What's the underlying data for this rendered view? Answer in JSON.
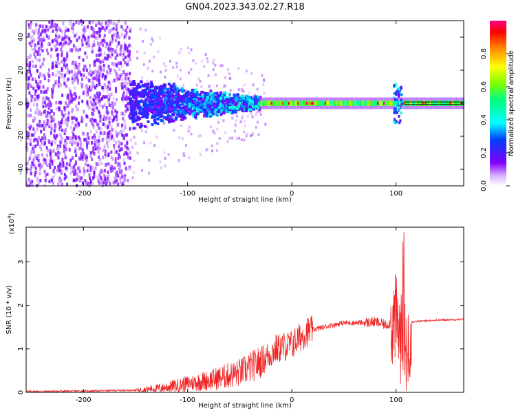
{
  "title": "GN04.2023.343.02.27.R18",
  "chart_data": [
    {
      "type": "heatmap",
      "xlabel": "Height of straight line (km)",
      "ylabel": "Frequency (Hz)",
      "xlim": [
        -255,
        165
      ],
      "ylim": [
        -50,
        50
      ],
      "xticks": [
        "-200",
        "-100",
        "0",
        "100"
      ],
      "yticks": [
        "-40",
        "-20",
        "0",
        "20",
        "40"
      ],
      "colorbar": {
        "label": "Normalized spectral amplitude",
        "range": [
          0,
          1
        ],
        "ticks": [
          "0.0",
          "0.2",
          "0.4",
          "0.6",
          "0.8"
        ]
      },
      "features": {
        "noise_region_x": [
          -255,
          -155
        ],
        "burst_region_x": [
          -155,
          -30
        ],
        "tone_x": [
          -30,
          165
        ],
        "tone_frequency_hz": 0,
        "disturbance_x": 100
      }
    },
    {
      "type": "line",
      "xlabel": "Height of straight line (km)",
      "ylabel": "SNR (10 * v/v)",
      "yscale_note": "(x10^4)",
      "xlim": [
        -255,
        165
      ],
      "ylim": [
        0,
        3.8
      ],
      "xticks": [
        "-200",
        "-100",
        "0",
        "100"
      ],
      "yticks": [
        "0",
        "1",
        "2",
        "3"
      ],
      "series": [
        {
          "color": "#ee2222",
          "x": [
            -255,
            -200,
            -150,
            -125,
            -100,
            -75,
            -50,
            -30,
            -15,
            0,
            15,
            30,
            50,
            70,
            80,
            90,
            100,
            105,
            110,
            115,
            130,
            150,
            165
          ],
          "y": [
            0.02,
            0.03,
            0.05,
            0.1,
            0.2,
            0.3,
            0.45,
            0.7,
            1.0,
            1.1,
            1.4,
            1.5,
            1.6,
            1.6,
            1.62,
            1.55,
            1.65,
            1.2,
            1.0,
            1.62,
            1.65,
            1.67,
            1.68
          ]
        }
      ]
    }
  ]
}
